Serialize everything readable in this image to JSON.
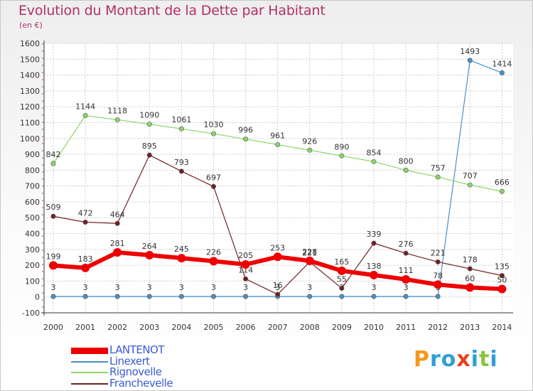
{
  "colors": {
    "title": "#b0306a",
    "lantenot": "#ee0000",
    "linexert": "#4a90c8",
    "rignovelle": "#8cd46a",
    "franchevelle": "#6e2222",
    "grid": "#cccccc",
    "axis": "#333333"
  },
  "logo": {
    "letters": [
      "P",
      "r",
      "o",
      "x",
      "i",
      "t",
      "i"
    ]
  },
  "chart_data": {
    "type": "line",
    "title": "Evolution du Montant de la Dette par Habitant",
    "subtitle": "(en €)",
    "xlabel": "",
    "ylabel": "",
    "ylim": [
      -100,
      1600
    ],
    "yticks": [
      -100,
      0,
      100,
      200,
      300,
      400,
      500,
      600,
      700,
      800,
      900,
      1000,
      1100,
      1200,
      1300,
      1400,
      1500,
      1600
    ],
    "grid": true,
    "legend_position": "bottom-left",
    "x": [
      "2000",
      "2001",
      "2002",
      "2003",
      "2004",
      "2005",
      "2006",
      "2007",
      "2008",
      "2009",
      "2010",
      "2011",
      "2012",
      "2013",
      "2014"
    ],
    "series": [
      {
        "name": "Linexert",
        "key": "linexert",
        "values": [
          3,
          3,
          3,
          3,
          3,
          3,
          3,
          3,
          3,
          3,
          3,
          3,
          3,
          1493,
          1414
        ]
      },
      {
        "name": "Rignovelle",
        "key": "rignovelle",
        "values": [
          842,
          1144,
          1118,
          1090,
          1061,
          1030,
          996,
          961,
          926,
          890,
          854,
          800,
          757,
          707,
          666
        ]
      },
      {
        "name": "Franchevelle",
        "key": "franchevelle",
        "values": [
          509,
          472,
          464,
          895,
          793,
          697,
          114,
          16,
          221,
          55,
          339,
          276,
          221,
          178,
          135
        ]
      },
      {
        "name": "LANTENOT",
        "key": "lantenot",
        "values": [
          199,
          183,
          281,
          264,
          245,
          226,
          205,
          253,
          228,
          165,
          138,
          111,
          78,
          60,
          50
        ]
      }
    ]
  }
}
